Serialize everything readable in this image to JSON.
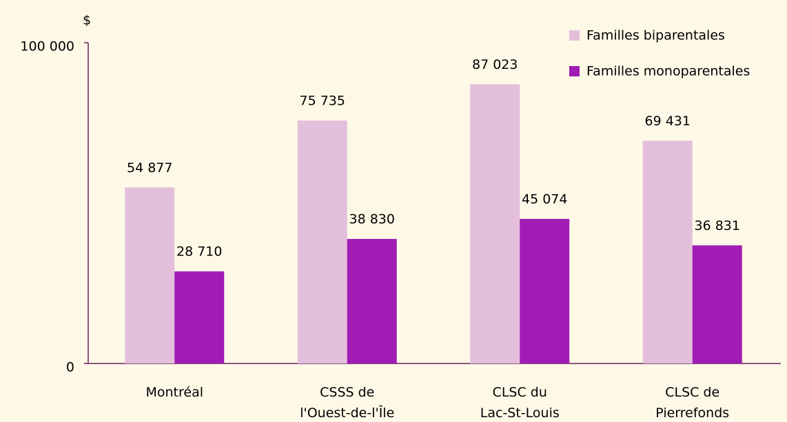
{
  "chart_data": {
    "type": "bar",
    "y_label": "$",
    "categories": [
      "Montréal",
      "CSSS de\nl'Ouest-de-l'Île",
      "CLSC du\nLac-St-Louis",
      "CLSC de\nPierrefonds"
    ],
    "series": [
      {
        "name": "Familles biparentales",
        "color": "#e3bfdc",
        "values": [
          54877,
          75735,
          87023,
          69431
        ],
        "value_labels": [
          "54 877",
          "75 735",
          "87 023",
          "69 431"
        ]
      },
      {
        "name": "Familles monoparentales",
        "color": "#a01cb4",
        "values": [
          28710,
          38830,
          45074,
          36831
        ],
        "value_labels": [
          "28 710",
          "38 830",
          "45 074",
          "36 831"
        ]
      }
    ],
    "ylim": [
      0,
      100000
    ],
    "yticks": [
      0,
      {
        "value": 100000,
        "label": "100 000"
      }
    ],
    "grid": false,
    "legend": "top-right"
  }
}
